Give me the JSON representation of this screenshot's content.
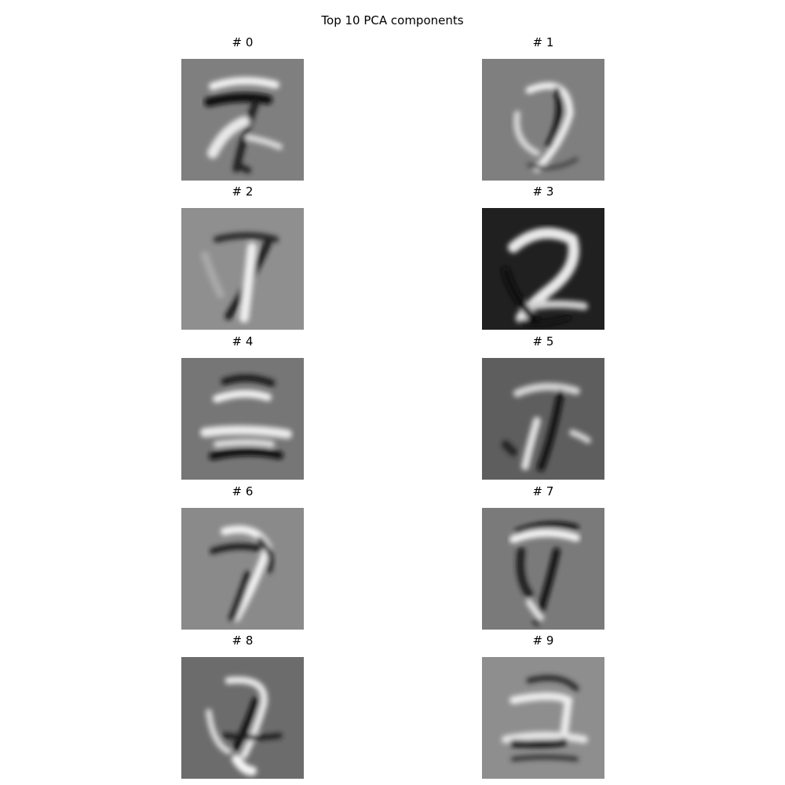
{
  "figure": {
    "title": "Top 10 PCA components"
  },
  "components": [
    {
      "label": "# 0",
      "background": "#7f7f7f"
    },
    {
      "label": "# 1",
      "background": "#7f7f7f"
    },
    {
      "label": "# 2",
      "background": "#8f8f8f"
    },
    {
      "label": "# 3",
      "background": "#202020"
    },
    {
      "label": "# 4",
      "background": "#767676"
    },
    {
      "label": "# 5",
      "background": "#5e5e5e"
    },
    {
      "label": "# 6",
      "background": "#8a8a8a"
    },
    {
      "label": "# 7",
      "background": "#7a7a7a"
    },
    {
      "label": "# 8",
      "background": "#6c6c6c"
    },
    {
      "label": "# 9",
      "background": "#8e8e8e"
    }
  ]
}
